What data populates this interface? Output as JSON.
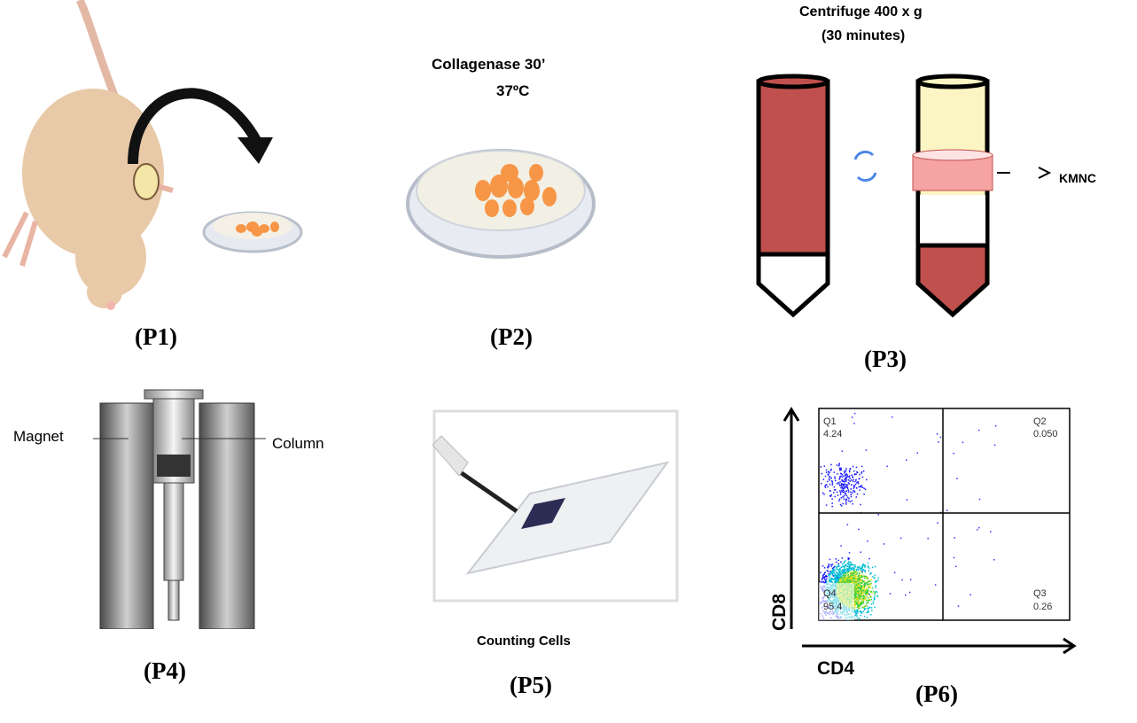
{
  "panels": {
    "p1": {
      "label": "(P1)"
    },
    "p2": {
      "label": "(P2)",
      "note_line1": "Collagenase  30’",
      "note_line2": "37ºC"
    },
    "p3": {
      "label": "(P3)",
      "note_line1": "Centrifuge 400 x g",
      "note_line2": "(30 minutes)",
      "layer_label": "KMNC"
    },
    "p4": {
      "label": "(P4)",
      "magnet_label": "Magnet",
      "column_label": "Column"
    },
    "p5": {
      "label": "(P5)",
      "caption": "Counting Cells"
    },
    "p6": {
      "label": "(P6)",
      "x_axis": "CD4",
      "y_axis": "CD8",
      "quadrants": [
        {
          "name": "Q1",
          "value": "4.24"
        },
        {
          "name": "Q2",
          "value": "0.050"
        },
        {
          "name": "Q3",
          "value": "0.26"
        },
        {
          "name": "Q4",
          "value": "95.4"
        }
      ]
    }
  },
  "colors": {
    "blood": "#c0504d",
    "plasma": "#fbf5c4",
    "cells": "#f79646",
    "mouse": "#e8c9a8"
  }
}
